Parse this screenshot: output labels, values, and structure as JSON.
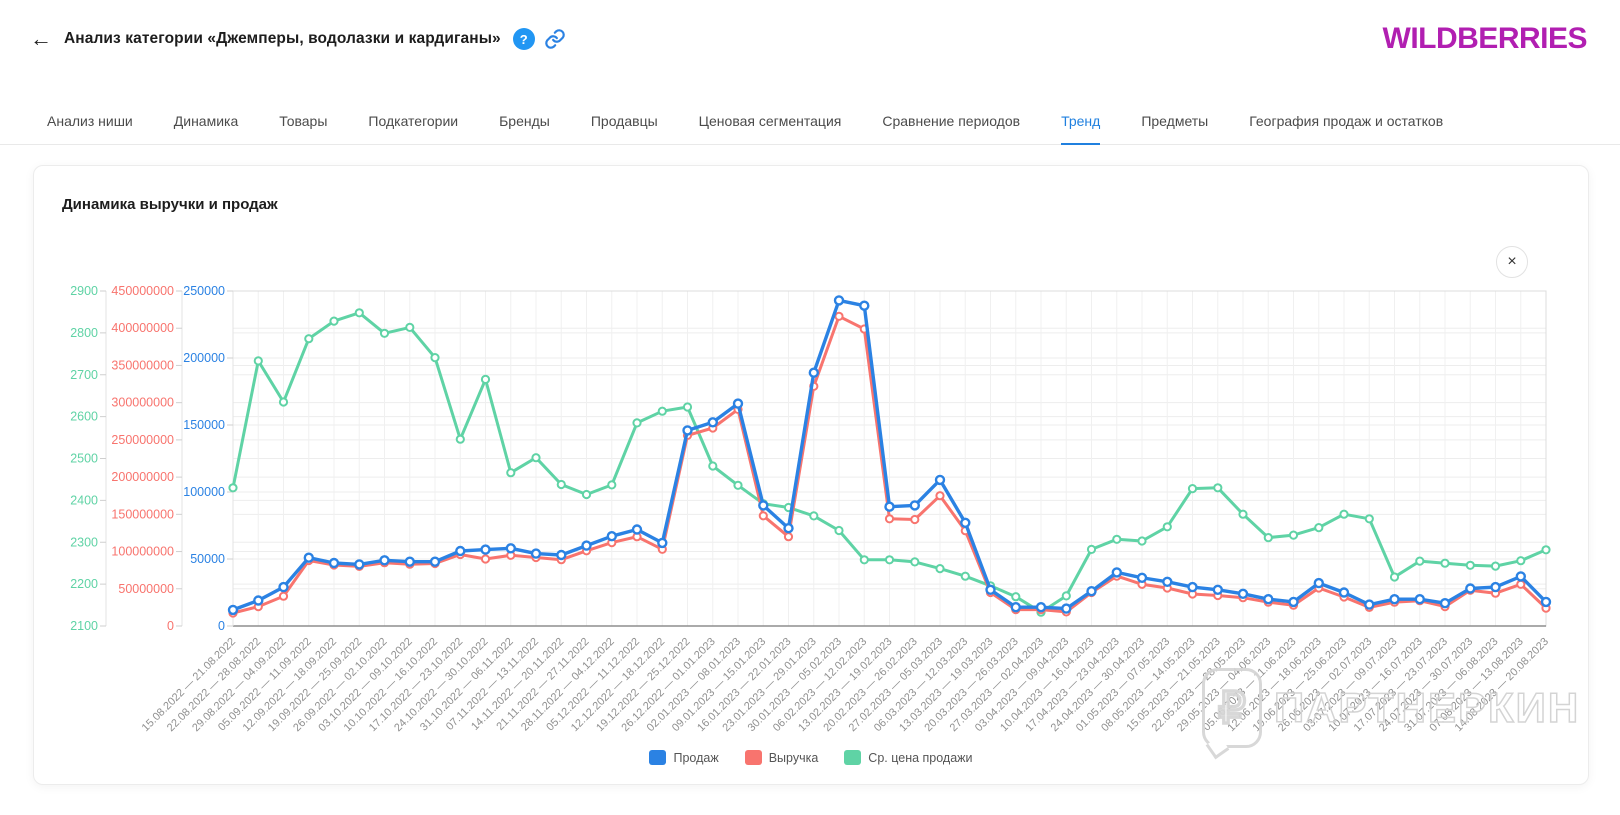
{
  "header": {
    "back_arrow": "←",
    "title": "Анализ категории «Джемперы, водолазки и кардиганы»",
    "help_icon": "?",
    "logo": "WILDBERRIES"
  },
  "tabs": [
    {
      "label": "Анализ ниши",
      "active": false
    },
    {
      "label": "Динамика",
      "active": false
    },
    {
      "label": "Товары",
      "active": false
    },
    {
      "label": "Подкатегории",
      "active": false
    },
    {
      "label": "Бренды",
      "active": false
    },
    {
      "label": "Продавцы",
      "active": false
    },
    {
      "label": "Ценовая сегментация",
      "active": false
    },
    {
      "label": "Сравнение периодов",
      "active": false
    },
    {
      "label": "Тренд",
      "active": true
    },
    {
      "label": "Предметы",
      "active": false
    },
    {
      "label": "География продаж и остатков",
      "active": false
    }
  ],
  "chart_card": {
    "title": "Динамика выручки и продаж",
    "close_label": "×"
  },
  "watermark": {
    "symbol": "₽",
    "text": "ПАРТНЕРКИН"
  },
  "colors": {
    "logo": "#b11fb1",
    "accent_blue": "#2196f3",
    "active_tab": "#2080df",
    "series_sales": "#2b82e3",
    "series_revenue": "#f8746e",
    "series_price": "#5fd3a5",
    "grid": "#ededed",
    "x_label": "#909090"
  },
  "chart_data": {
    "type": "line",
    "title": "Динамика выручки и продаж",
    "grid": true,
    "legend_position": "bottom",
    "x_labels_rotation": -45,
    "categories": [
      "15.08.2022 — 21.08.2022",
      "22.08.2022 — 28.08.2022",
      "29.08.2022 — 04.09.2022",
      "05.09.2022 — 11.09.2022",
      "12.09.2022 — 18.09.2022",
      "19.09.2022 — 25.09.2022",
      "26.09.2022 — 02.10.2022",
      "03.10.2022 — 09.10.2022",
      "10.10.2022 — 16.10.2022",
      "17.10.2022 — 23.10.2022",
      "24.10.2022 — 30.10.2022",
      "31.10.2022 — 06.11.2022",
      "07.11.2022 — 13.11.2022",
      "14.11.2022 — 20.11.2022",
      "21.11.2022 — 27.11.2022",
      "28.11.2022 — 04.12.2022",
      "05.12.2022 — 11.12.2022",
      "12.12.2022 — 18.12.2022",
      "19.12.2022 — 25.12.2022",
      "26.12.2022 — 01.01.2023",
      "02.01.2023 — 08.01.2023",
      "09.01.2023 — 15.01.2023",
      "16.01.2023 — 22.01.2023",
      "23.01.2023 — 29.01.2023",
      "30.01.2023 — 05.02.2023",
      "06.02.2023 — 12.02.2023",
      "13.02.2023 — 19.02.2023",
      "20.02.2023 — 26.02.2023",
      "27.02.2023 — 05.03.2023",
      "06.03.2023 — 12.03.2023",
      "13.03.2023 — 19.03.2023",
      "20.03.2023 — 26.03.2023",
      "27.03.2023 — 02.04.2023",
      "03.04.2023 — 09.04.2023",
      "10.04.2023 — 16.04.2023",
      "17.04.2023 — 23.04.2023",
      "24.04.2023 — 30.04.2023",
      "01.05.2023 — 07.05.2023",
      "08.05.2023 — 14.05.2023",
      "15.05.2023 — 21.05.2023",
      "22.05.2023 — 28.05.2023",
      "29.05.2023 — 04.06.2023",
      "05.06.2023 — 11.06.2023",
      "12.06.2023 — 18.06.2023",
      "19.06.2023 — 25.06.2023",
      "26.06.2023 — 02.07.2023",
      "03.07.2023 — 09.07.2023",
      "10.07.2023 — 16.07.2023",
      "17.07.2023 — 23.07.2023",
      "24.07.2023 — 30.07.2023",
      "31.07.2023 — 06.08.2023",
      "07.08.2023 — 13.08.2023",
      "14.08.2023 — 20.08.2023"
    ],
    "axes": {
      "price": {
        "min": 2100,
        "max": 2900,
        "color": "#5fd3a5",
        "ticks": [
          2900,
          2800,
          2700,
          2600,
          2500,
          2400,
          2300,
          2200,
          2100
        ]
      },
      "revenue": {
        "min": 0,
        "max": 450000000,
        "color": "#f8746e",
        "ticks": [
          450000000,
          400000000,
          350000000,
          300000000,
          250000000,
          200000000,
          150000000,
          100000000,
          50000000,
          0
        ]
      },
      "sales": {
        "min": 0,
        "max": 250000,
        "color": "#2b82e3",
        "ticks": [
          250000,
          200000,
          150000,
          100000,
          50000,
          0
        ]
      }
    },
    "series": [
      {
        "name": "Продаж",
        "axis": "sales",
        "color": "#2b82e3",
        "values": [
          12000,
          19000,
          29000,
          51000,
          47000,
          46000,
          49000,
          48000,
          48000,
          56000,
          57000,
          58000,
          54000,
          53000,
          60000,
          67000,
          72000,
          62000,
          146000,
          152000,
          166000,
          90000,
          73000,
          189000,
          243000,
          239000,
          89000,
          90000,
          109000,
          77000,
          27000,
          14000,
          14000,
          13000,
          26000,
          40000,
          36000,
          33000,
          29000,
          27000,
          24000,
          20000,
          18000,
          32000,
          25000,
          16000,
          20000,
          20000,
          17000,
          28000,
          29000,
          37000,
          18000
        ]
      },
      {
        "name": "Выручка",
        "axis": "revenue",
        "color": "#f8746e",
        "values": [
          17500000,
          26000000,
          40000000,
          88000000,
          82000000,
          80000000,
          85000000,
          83000000,
          84000000,
          96000000,
          90000000,
          95000000,
          92000000,
          89000000,
          101000000,
          112000000,
          120000000,
          103000000,
          256000000,
          266000000,
          291000000,
          148000000,
          120000000,
          322000000,
          416000000,
          399000000,
          144000000,
          143000000,
          175000000,
          128000000,
          45000000,
          22000000,
          22000000,
          19000000,
          45000000,
          67000000,
          56000000,
          51000000,
          43000000,
          41000000,
          38000000,
          32000000,
          28000000,
          51000000,
          39000000,
          25000000,
          32000000,
          34000000,
          26000000,
          48000000,
          44000000,
          56000000,
          24000000
        ]
      },
      {
        "name": "Ср. цена продажи",
        "axis": "price",
        "color": "#5fd3a5",
        "values": [
          2430,
          2733,
          2635,
          2786,
          2828,
          2848,
          2799,
          2813,
          2741,
          2546,
          2689,
          2466,
          2502,
          2438,
          2414,
          2437,
          2585,
          2613,
          2623,
          2482,
          2436,
          2392,
          2383,
          2363,
          2328,
          2258,
          2258,
          2253,
          2237,
          2219,
          2196,
          2170,
          2133,
          2172,
          2283,
          2307,
          2303,
          2337,
          2428,
          2430,
          2367,
          2311,
          2317,
          2335,
          2367,
          2356,
          2217,
          2255,
          2250,
          2245,
          2243,
          2256,
          2282
        ]
      }
    ]
  }
}
